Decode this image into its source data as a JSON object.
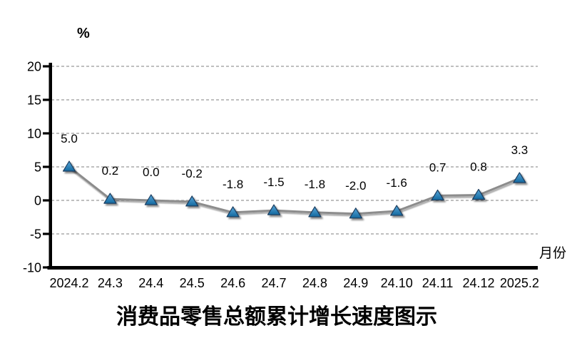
{
  "chart_data": {
    "type": "line",
    "title": "消费品零售总额累计增长速度图示",
    "ylabel": "%",
    "xlabel": "月份",
    "categories": [
      "2024.2",
      "24.3",
      "24.4",
      "24.5",
      "24.6",
      "24.7",
      "24.8",
      "24.9",
      "24.10",
      "24.11",
      "24.12",
      "2025.2"
    ],
    "values": [
      5.0,
      0.2,
      0.0,
      -0.2,
      -1.8,
      -1.5,
      -1.8,
      -2.0,
      -1.6,
      0.7,
      0.8,
      3.3
    ],
    "data_labels": [
      "5.0",
      "0.2",
      "0.0",
      "-0.2",
      "-1.8",
      "-1.5",
      "-1.8",
      "-2.0",
      "-1.6",
      "0.7",
      "0.8",
      "3.3"
    ],
    "ylim": [
      -10,
      20
    ],
    "ytick_step": 5,
    "ytick_labels": [
      "20",
      "15",
      "10",
      "5",
      "0",
      "-5",
      "-10"
    ],
    "ytick_values": [
      20,
      15,
      10,
      5,
      0,
      -5,
      -10
    ],
    "grid": "horizontal-dashed",
    "legend": "none",
    "colors": {
      "line": "#8c8c8c",
      "marker_fill_top": "#58a7da",
      "marker_fill_bottom": "#14699f",
      "marker_stroke": "#1b3c5e",
      "gridline": "#999999",
      "axis": "#000000",
      "text": "#000000"
    }
  }
}
